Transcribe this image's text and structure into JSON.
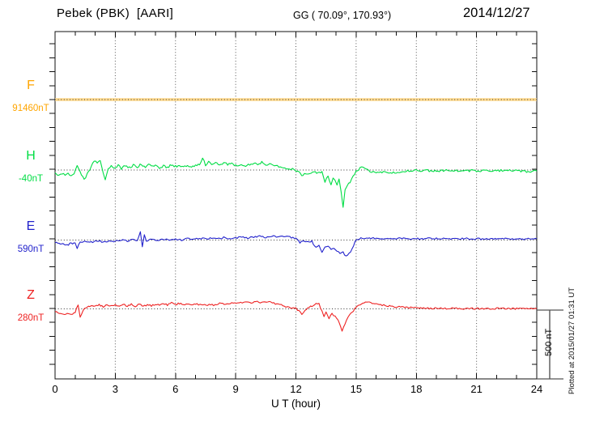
{
  "header": {
    "station": "Pebek (PBK)  [AARI]",
    "geographic": "GG ( 70.09°, 170.93°)",
    "date": "2014/12/27"
  },
  "axis": {
    "x_label": "U T (hour)",
    "x_ticks": [
      "0",
      "3",
      "6",
      "9",
      "12",
      "15",
      "18",
      "21",
      "24"
    ]
  },
  "scale_bar": {
    "label": "500 nT",
    "span_nT": 500
  },
  "footer_note": "Plotted at 2015/01/27 01:31 UT",
  "chart_data": {
    "type": "line",
    "title": "Pebek (PBK) [AARI] magnetogram 2014/12/27",
    "xlabel": "U T (hour)",
    "x_range": [
      0,
      24
    ],
    "x_grid_step_hours": 3,
    "grid": true,
    "legend_position": "left-margin",
    "y_scale_note": "each channel plotted around its own dotted baseline; 500 nT scale bar shown at right",
    "series": [
      {
        "name": "F",
        "baseline_label": "91460nT",
        "baseline_nT": 91460,
        "color": "#FFA500",
        "trace_color": "#FFD98C",
        "width": 3.5,
        "noise_nT": 0,
        "points": [
          [
            0,
            0
          ],
          [
            24,
            0
          ]
        ]
      },
      {
        "name": "H",
        "baseline_label": "-40nT",
        "baseline_nT": -40,
        "color": "#00DD44",
        "trace_color": "#00DD44",
        "width": 1.1,
        "noise_nT": 8,
        "points": [
          [
            0,
            -25
          ],
          [
            0.2,
            -35
          ],
          [
            0.35,
            -25
          ],
          [
            0.5,
            -40
          ],
          [
            0.65,
            -30
          ],
          [
            0.8,
            -42
          ],
          [
            0.95,
            -20
          ],
          [
            1.1,
            25
          ],
          [
            1.25,
            -10
          ],
          [
            1.45,
            -70
          ],
          [
            1.6,
            -30
          ],
          [
            1.8,
            20
          ],
          [
            1.95,
            70
          ],
          [
            2.1,
            45
          ],
          [
            2.25,
            75
          ],
          [
            2.4,
            -20
          ],
          [
            2.5,
            -65
          ],
          [
            2.65,
            10
          ],
          [
            2.8,
            25
          ],
          [
            3.0,
            15
          ],
          [
            3.15,
            40
          ],
          [
            3.3,
            10
          ],
          [
            3.5,
            30
          ],
          [
            3.7,
            15
          ],
          [
            3.9,
            35
          ],
          [
            4.1,
            20
          ],
          [
            4.3,
            45
          ],
          [
            4.5,
            15
          ],
          [
            4.65,
            50
          ],
          [
            4.8,
            25
          ],
          [
            5.0,
            35
          ],
          [
            5.2,
            15
          ],
          [
            5.4,
            30
          ],
          [
            5.6,
            20
          ],
          [
            5.8,
            35
          ],
          [
            6.0,
            25
          ],
          [
            6.2,
            30
          ],
          [
            6.4,
            20
          ],
          [
            6.6,
            30
          ],
          [
            6.8,
            25
          ],
          [
            7.0,
            30
          ],
          [
            7.2,
            40
          ],
          [
            7.35,
            85
          ],
          [
            7.5,
            35
          ],
          [
            7.65,
            55
          ],
          [
            7.8,
            40
          ],
          [
            8.0,
            50
          ],
          [
            8.2,
            35
          ],
          [
            8.4,
            55
          ],
          [
            8.6,
            40
          ],
          [
            8.8,
            45
          ],
          [
            9.0,
            30
          ],
          [
            9.2,
            35
          ],
          [
            9.5,
            25
          ],
          [
            9.7,
            40
          ],
          [
            9.9,
            50
          ],
          [
            10.1,
            35
          ],
          [
            10.3,
            55
          ],
          [
            10.5,
            40
          ],
          [
            10.7,
            45
          ],
          [
            11.0,
            30
          ],
          [
            11.3,
            20
          ],
          [
            11.6,
            10
          ],
          [
            11.9,
            5
          ],
          [
            12.1,
            -10
          ],
          [
            12.35,
            -45
          ],
          [
            12.5,
            -20
          ],
          [
            12.7,
            -30
          ],
          [
            12.9,
            -15
          ],
          [
            13.1,
            -25
          ],
          [
            13.3,
            -10
          ],
          [
            13.45,
            -85
          ],
          [
            13.6,
            -45
          ],
          [
            13.75,
            -100
          ],
          [
            13.85,
            -60
          ],
          [
            13.95,
            -75
          ],
          [
            14.05,
            -115
          ],
          [
            14.15,
            -70
          ],
          [
            14.25,
            -160
          ],
          [
            14.35,
            -273
          ],
          [
            14.45,
            -150
          ],
          [
            14.55,
            -115
          ],
          [
            14.7,
            -85
          ],
          [
            14.85,
            -40
          ],
          [
            15.0,
            -10
          ],
          [
            15.2,
            15
          ],
          [
            15.35,
            20
          ],
          [
            15.5,
            5
          ],
          [
            15.7,
            -10
          ],
          [
            16.0,
            -15
          ],
          [
            16.5,
            -18
          ],
          [
            17.0,
            -15
          ],
          [
            17.5,
            -8
          ],
          [
            18.0,
            -5
          ],
          [
            19,
            -5
          ],
          [
            20,
            -3
          ],
          [
            21,
            -6
          ],
          [
            22,
            -4
          ],
          [
            23,
            -6
          ],
          [
            23.7,
            -12
          ],
          [
            24,
            -8
          ]
        ]
      },
      {
        "name": "E",
        "baseline_label": "590nT",
        "baseline_nT": 590,
        "color": "#2222CC",
        "trace_color": "#2222CC",
        "width": 1.1,
        "noise_nT": 6,
        "points": [
          [
            0,
            -15
          ],
          [
            0.2,
            -25
          ],
          [
            0.4,
            -30
          ],
          [
            0.6,
            -35
          ],
          [
            0.8,
            -25
          ],
          [
            1.0,
            -20
          ],
          [
            1.1,
            -60
          ],
          [
            1.25,
            -15
          ],
          [
            1.5,
            -10
          ],
          [
            1.8,
            -15
          ],
          [
            2.1,
            -5
          ],
          [
            2.4,
            -12
          ],
          [
            2.7,
            -5
          ],
          [
            3.0,
            -10
          ],
          [
            3.3,
            0
          ],
          [
            3.6,
            -8
          ],
          [
            3.9,
            5
          ],
          [
            4.1,
            -5
          ],
          [
            4.25,
            65
          ],
          [
            4.35,
            -45
          ],
          [
            4.45,
            40
          ],
          [
            4.55,
            -10
          ],
          [
            4.8,
            5
          ],
          [
            5.1,
            -5
          ],
          [
            5.4,
            5
          ],
          [
            5.7,
            0
          ],
          [
            6.0,
            8
          ],
          [
            6.3,
            0
          ],
          [
            6.6,
            10
          ],
          [
            6.9,
            5
          ],
          [
            7.2,
            12
          ],
          [
            7.5,
            8
          ],
          [
            7.8,
            15
          ],
          [
            8.1,
            10
          ],
          [
            8.4,
            18
          ],
          [
            8.7,
            12
          ],
          [
            9.0,
            15
          ],
          [
            9.3,
            20
          ],
          [
            9.6,
            15
          ],
          [
            9.9,
            22
          ],
          [
            10.2,
            28
          ],
          [
            10.5,
            20
          ],
          [
            10.8,
            30
          ],
          [
            11.1,
            22
          ],
          [
            11.4,
            28
          ],
          [
            11.7,
            20
          ],
          [
            12.0,
            15
          ],
          [
            12.2,
            -20
          ],
          [
            12.4,
            -5
          ],
          [
            12.6,
            -15
          ],
          [
            12.8,
            -10
          ],
          [
            13.0,
            -55
          ],
          [
            13.15,
            -35
          ],
          [
            13.3,
            -85
          ],
          [
            13.45,
            -45
          ],
          [
            13.6,
            -50
          ],
          [
            13.75,
            -65
          ],
          [
            13.9,
            -60
          ],
          [
            14.05,
            -75
          ],
          [
            14.2,
            -100
          ],
          [
            14.35,
            -90
          ],
          [
            14.5,
            -115
          ],
          [
            14.65,
            -95
          ],
          [
            14.8,
            -65
          ],
          [
            14.95,
            -15
          ],
          [
            15.1,
            10
          ],
          [
            15.3,
            15
          ],
          [
            15.6,
            10
          ],
          [
            16,
            12
          ],
          [
            16.5,
            8
          ],
          [
            17,
            12
          ],
          [
            17.5,
            10
          ],
          [
            18,
            8
          ],
          [
            18.5,
            12
          ],
          [
            19,
            10
          ],
          [
            19.5,
            8
          ],
          [
            20,
            12
          ],
          [
            20.5,
            10
          ],
          [
            21,
            8
          ],
          [
            21.5,
            10
          ],
          [
            22,
            8
          ],
          [
            22.5,
            10
          ],
          [
            23,
            6
          ],
          [
            23.5,
            8
          ],
          [
            24,
            10
          ]
        ]
      },
      {
        "name": "Z",
        "baseline_label": "280nT",
        "baseline_nT": 280,
        "color": "#EE2222",
        "trace_color": "#EE2222",
        "width": 1.1,
        "noise_nT": 6,
        "points": [
          [
            0,
            -22
          ],
          [
            0.2,
            -30
          ],
          [
            0.4,
            -40
          ],
          [
            0.6,
            -30
          ],
          [
            0.8,
            -38
          ],
          [
            1.0,
            -25
          ],
          [
            1.15,
            30
          ],
          [
            1.25,
            -58
          ],
          [
            1.4,
            -10
          ],
          [
            1.6,
            15
          ],
          [
            1.8,
            25
          ],
          [
            2.0,
            18
          ],
          [
            2.2,
            30
          ],
          [
            2.4,
            15
          ],
          [
            2.6,
            28
          ],
          [
            2.8,
            20
          ],
          [
            3.0,
            32
          ],
          [
            3.2,
            18
          ],
          [
            3.4,
            30
          ],
          [
            3.6,
            22
          ],
          [
            3.8,
            35
          ],
          [
            4.0,
            20
          ],
          [
            4.2,
            32
          ],
          [
            4.4,
            18
          ],
          [
            4.6,
            30
          ],
          [
            4.8,
            22
          ],
          [
            5.0,
            35
          ],
          [
            5.2,
            25
          ],
          [
            5.4,
            38
          ],
          [
            5.6,
            28
          ],
          [
            5.8,
            45
          ],
          [
            6.0,
            30
          ],
          [
            6.2,
            40
          ],
          [
            6.4,
            28
          ],
          [
            6.6,
            38
          ],
          [
            6.8,
            30
          ],
          [
            7.0,
            35
          ],
          [
            7.3,
            25
          ],
          [
            7.6,
            30
          ],
          [
            7.9,
            28
          ],
          [
            8.2,
            40
          ],
          [
            8.5,
            35
          ],
          [
            8.8,
            45
          ],
          [
            9.1,
            40
          ],
          [
            9.4,
            50
          ],
          [
            9.7,
            42
          ],
          [
            10.0,
            52
          ],
          [
            10.3,
            45
          ],
          [
            10.6,
            50
          ],
          [
            10.9,
            40
          ],
          [
            11.2,
            30
          ],
          [
            11.5,
            15
          ],
          [
            11.8,
            8
          ],
          [
            12.0,
            2
          ],
          [
            12.15,
            -15
          ],
          [
            12.3,
            -40
          ],
          [
            12.45,
            -12
          ],
          [
            12.6,
            10
          ],
          [
            12.8,
            20
          ],
          [
            13.0,
            35
          ],
          [
            13.15,
            40
          ],
          [
            13.3,
            -20
          ],
          [
            13.4,
            -58
          ],
          [
            13.5,
            -22
          ],
          [
            13.65,
            -70
          ],
          [
            13.8,
            -35
          ],
          [
            13.95,
            -55
          ],
          [
            14.1,
            -85
          ],
          [
            14.3,
            -155
          ],
          [
            14.45,
            -105
          ],
          [
            14.6,
            -58
          ],
          [
            14.8,
            -22
          ],
          [
            15.0,
            10
          ],
          [
            15.2,
            30
          ],
          [
            15.4,
            45
          ],
          [
            15.6,
            48
          ],
          [
            15.8,
            42
          ],
          [
            16.0,
            35
          ],
          [
            16.3,
            28
          ],
          [
            16.6,
            22
          ],
          [
            17.0,
            15
          ],
          [
            17.5,
            10
          ],
          [
            18.0,
            8
          ],
          [
            18.5,
            5
          ],
          [
            19,
            4
          ],
          [
            20,
            3
          ],
          [
            21,
            2
          ],
          [
            22,
            3
          ],
          [
            23,
            2
          ],
          [
            24,
            2
          ]
        ]
      }
    ]
  }
}
